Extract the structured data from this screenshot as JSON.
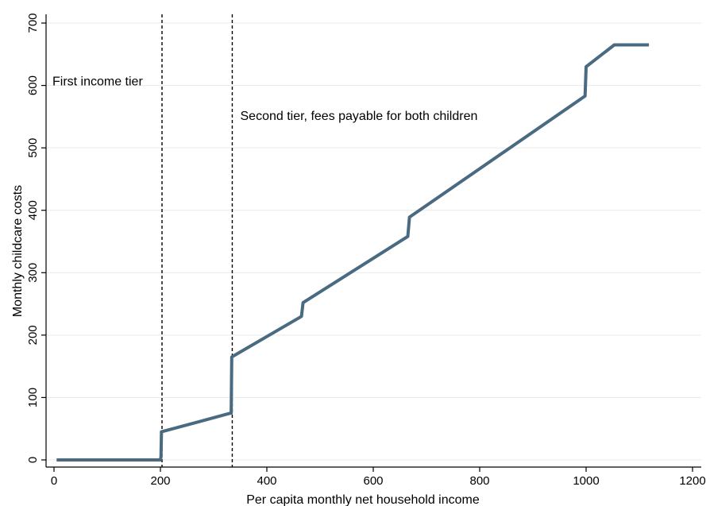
{
  "chart_data": {
    "type": "line",
    "title": "",
    "xlabel": "Per capita monthly net household income",
    "ylabel": "Monthly childcare costs",
    "xlim": [
      0,
      1200
    ],
    "ylim": [
      0,
      700
    ],
    "xticks": [
      0,
      200,
      400,
      600,
      800,
      1000,
      1200
    ],
    "yticks": [
      0,
      100,
      200,
      300,
      400,
      500,
      600,
      700
    ],
    "grid": "horizontal",
    "legend": "none",
    "series_color": "#4a6a82",
    "series": [
      {
        "x": [
          5,
          200,
          201,
          202,
          332,
          333,
          334,
          465,
          468,
          665,
          668,
          998,
          1000,
          1053,
          1118
        ],
        "y": [
          0,
          0,
          5,
          45,
          75,
          75,
          165,
          230,
          252,
          358,
          389,
          583,
          630,
          665,
          665
        ]
      }
    ],
    "vlines": [
      {
        "x": 203,
        "style": "dashed"
      },
      {
        "x": 335,
        "style": "dashed"
      }
    ],
    "annotations": [
      {
        "text": "First income tier",
        "x": -3,
        "y": 600
      },
      {
        "text": "Second tier, fees payable for both children",
        "x": 350,
        "y": 545
      }
    ]
  }
}
